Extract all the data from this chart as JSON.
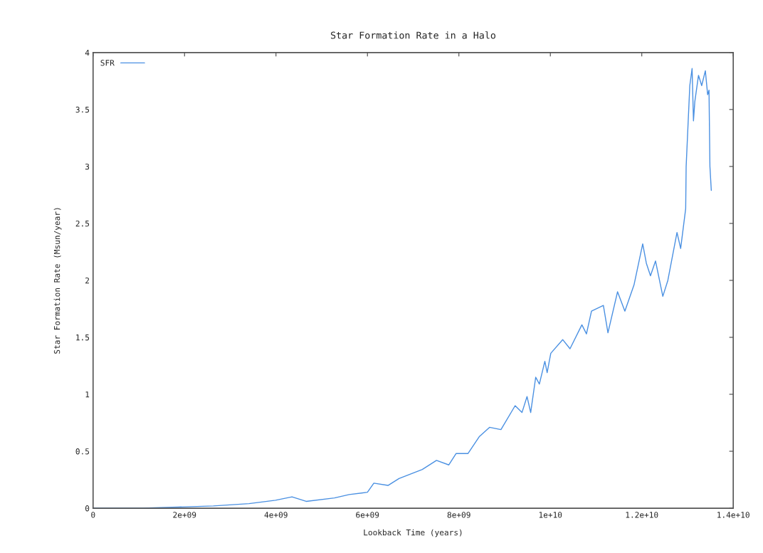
{
  "chart_data": {
    "type": "line",
    "title": "Star Formation Rate in a Halo",
    "xlabel": "Lookback Time (years)",
    "ylabel": "Star Formation Rate (Msun/year)",
    "x": [
      0,
      1080000000.0,
      1860000000.0,
      2630000000.0,
      3410000000.0,
      3990000000.0,
      4350000000.0,
      4660000000.0,
      5280000000.0,
      5600000000.0,
      6000000000.0,
      6140000000.0,
      6450000000.0,
      6690000000.0,
      7200000000.0,
      7510000000.0,
      7780000000.0,
      7940000000.0,
      8200000000.0,
      8450000000.0,
      8670000000.0,
      8920000000.0,
      9230000000.0,
      9380000000.0,
      9490000000.0,
      9570000000.0,
      9680000000.0,
      9760000000.0,
      9880000000.0,
      9930000000.0,
      10010000000.0,
      10270000000.0,
      10430000000.0,
      10690000000.0,
      10790000000.0,
      10900000000.0,
      11160000000.0,
      11260000000.0,
      11470000000.0,
      11630000000.0,
      11830000000.0,
      12020000000.0,
      12100000000.0,
      12190000000.0,
      12300000000.0,
      12460000000.0,
      12570000000.0,
      12770000000.0,
      12850000000.0,
      12960000000.0,
      12970000000.0,
      13050000000.0,
      13100000000.0,
      13130000000.0,
      13160000000.0,
      13240000000.0,
      13310000000.0,
      13390000000.0,
      13440000000.0,
      13470000000.0,
      13490000000.0,
      13520000000.0
    ],
    "series": [
      {
        "name": "SFR",
        "color": "#4a90e2",
        "values": [
          0,
          0,
          0.01,
          0.02,
          0.04,
          0.07,
          0.1,
          0.06,
          0.09,
          0.12,
          0.14,
          0.22,
          0.2,
          0.26,
          0.34,
          0.42,
          0.38,
          0.48,
          0.48,
          0.63,
          0.71,
          0.69,
          0.9,
          0.84,
          0.98,
          0.84,
          1.15,
          1.09,
          1.29,
          1.19,
          1.36,
          1.48,
          1.4,
          1.61,
          1.53,
          1.73,
          1.78,
          1.54,
          1.9,
          1.73,
          1.96,
          2.32,
          2.15,
          2.04,
          2.17,
          1.86,
          2.0,
          2.42,
          2.28,
          2.63,
          3.0,
          3.71,
          3.86,
          3.4,
          3.57,
          3.8,
          3.71,
          3.84,
          3.63,
          3.67,
          3.0,
          2.79
        ]
      }
    ],
    "xlim": [
      0,
      14000000000.0
    ],
    "ylim": [
      0,
      4
    ],
    "xticks": [
      0,
      {
        "value": 2000000000.0,
        "label": "2e+09"
      },
      {
        "value": 4000000000.0,
        "label": "4e+09"
      },
      {
        "value": 6000000000.0,
        "label": "6e+09"
      },
      {
        "value": 8000000000.0,
        "label": "8e+09"
      },
      {
        "value": 10000000000.0,
        "label": "1e+10"
      },
      {
        "value": 12000000000.0,
        "label": "1.2e+10"
      },
      {
        "value": 14000000000.0,
        "label": "1.4e+10"
      }
    ],
    "yticks": [
      0,
      0.5,
      1,
      1.5,
      2,
      2.5,
      3,
      3.5,
      4
    ],
    "legend": "top left",
    "grid": false,
    "marker": "none",
    "line_style": "solid"
  }
}
